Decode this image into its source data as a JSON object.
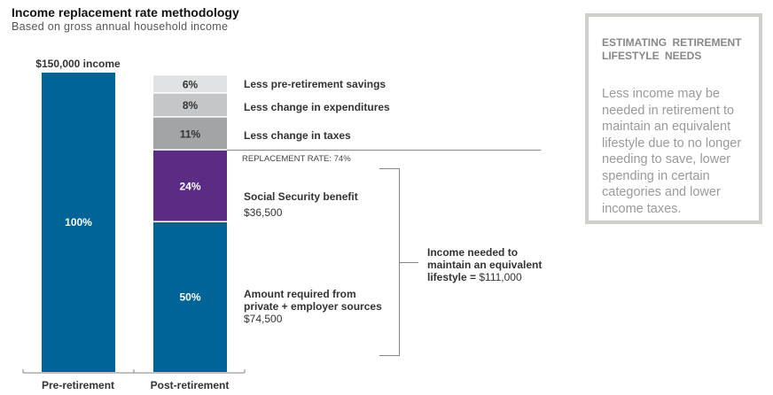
{
  "chart_data": {
    "type": "bar",
    "stacked": true,
    "title": "Income replacement rate methodology",
    "subtitle": "Based on gross annual household income",
    "categories": [
      "Pre-retirement",
      "Post-retirement"
    ],
    "pre_label": "$150,000 income",
    "ylim": [
      0,
      100
    ],
    "series": [
      {
        "category": "Pre-retirement",
        "name": "Income",
        "value": 100,
        "label": "100%",
        "color": "#006596",
        "text_color": "#ffffff"
      },
      {
        "category": "Post-retirement",
        "name": "Amount required from private + employer sources",
        "value": 50,
        "label": "50%",
        "color": "#006596",
        "text_color": "#ffffff"
      },
      {
        "category": "Post-retirement",
        "name": "Social Security benefit",
        "value": 24,
        "label": "24%",
        "color": "#5b2c83",
        "text_color": "#ffffff"
      },
      {
        "category": "Post-retirement",
        "name": "Less change in taxes",
        "value": 11,
        "label": "11%",
        "color": "#a2a4a6",
        "text_color": "#333333"
      },
      {
        "category": "Post-retirement",
        "name": "Less change in expenditures",
        "value": 8,
        "label": "8%",
        "color": "#c5c6c7",
        "text_color": "#333333"
      },
      {
        "category": "Post-retirement",
        "name": "Less pre-retirement savings",
        "value": 6,
        "label": "6%",
        "color": "#e1e2e3",
        "text_color": "#333333"
      }
    ],
    "annotations": {
      "savings": "Less pre-retirement savings",
      "expenditures": "Less change in expenditures",
      "taxes": "Less change in taxes",
      "replacement_rate": "REPLACEMENT RATE: 74%",
      "ss_title": "Social Security benefit",
      "ss_amount": "$36,500",
      "private_title_1": "Amount required from",
      "private_title_2": "private + employer sources",
      "private_amount": "$74,500",
      "needed_1": "Income needed to",
      "needed_2": "maintain an equivalent",
      "needed_3": "lifestyle =",
      "needed_amount": "$111,000"
    }
  },
  "panel": {
    "title": "ESTIMATING RETIREMENT LIFESTYLE NEEDS",
    "body": "Less income may be needed in retirement to maintain an equivalent lifestyle due to no longer needing to save, lower spending in certain categories and lower income taxes."
  }
}
